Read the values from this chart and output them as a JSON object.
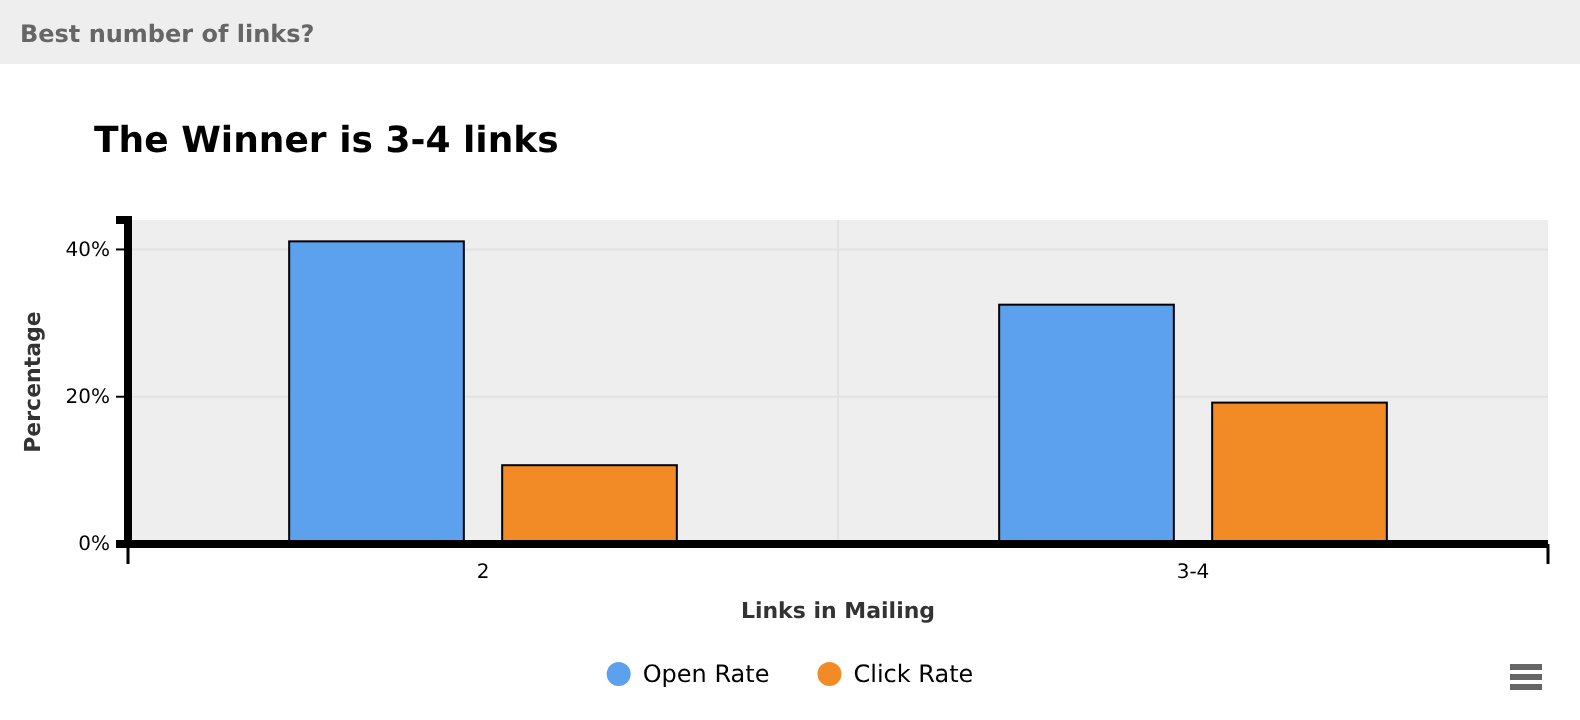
{
  "chart_data": {
    "type": "bar",
    "title": "The Winner is 3-4 links",
    "annotations": [
      "Best number of links?"
    ],
    "xlabel": "Links in Mailing",
    "ylabel": "Percentage",
    "categories": [
      "2",
      "3-4"
    ],
    "series": [
      {
        "name": "Open Rate",
        "color": "#5ca1ed",
        "values": [
          41.1,
          32.5
        ]
      },
      {
        "name": "Click Rate",
        "color": "#f28b25",
        "values": [
          10.7,
          19.2
        ]
      }
    ],
    "ylim": [
      0,
      44
    ],
    "yticks": [
      {
        "value": 0,
        "label": "0%"
      },
      {
        "value": 20,
        "label": "20%"
      },
      {
        "value": 40,
        "label": "40%"
      }
    ],
    "grid": true,
    "legend": "bottom"
  }
}
